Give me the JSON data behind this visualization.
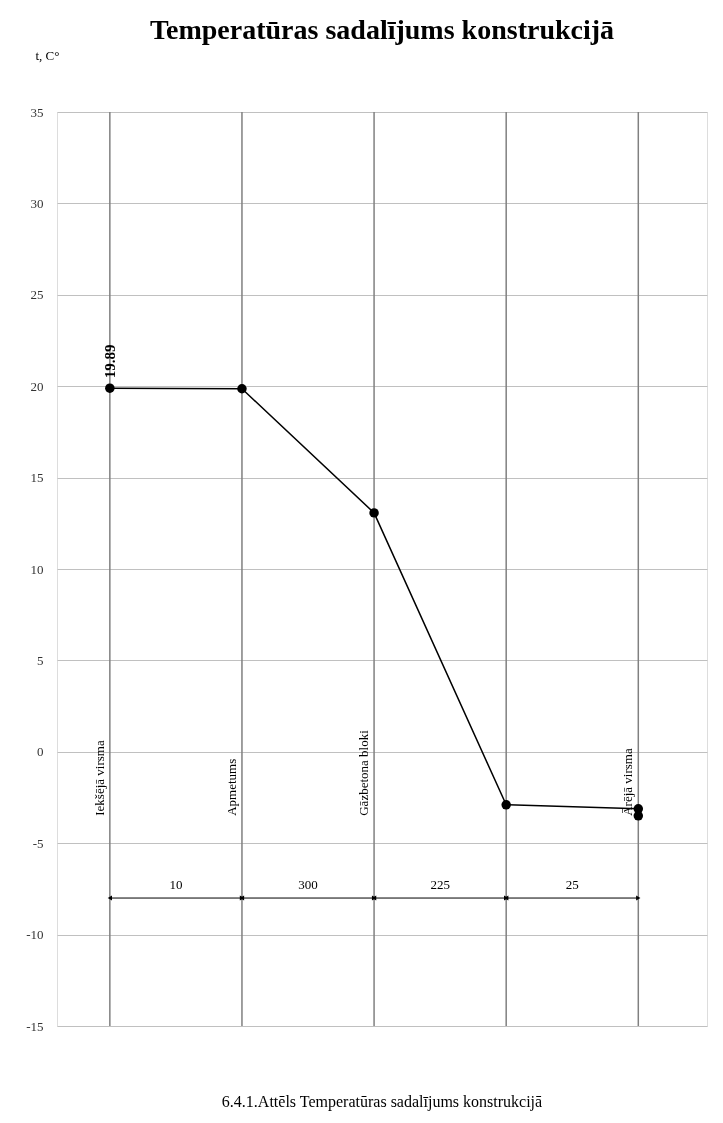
{
  "chart_data": {
    "type": "line",
    "title": "Temperatūras sadalījums konstrukcijā",
    "ylabel": "t, C°",
    "categories": [
      "Iekšējā virsma",
      "Apmetums",
      "Gāzbetona bloki",
      null,
      "Ārējā virsma"
    ],
    "series": [
      {
        "color": "#000000",
        "values": [
          19.89,
          19.86,
          13.07,
          -2.9,
          -3.12
        ],
        "value_labels": [
          "19.89",
          null,
          null,
          null,
          null
        ]
      },
      {
        "type": "scatter",
        "color": "#000000",
        "values": [
          null,
          null,
          null,
          null,
          -3.5
        ]
      }
    ],
    "ylim": [
      -15,
      35
    ],
    "yticks": [
      -15,
      -10,
      -5,
      0,
      5,
      10,
      15,
      20,
      25,
      30,
      35
    ],
    "grid": true,
    "marker": "circle",
    "line_style": "solid",
    "annotations": [
      "10",
      "300",
      "225",
      "25",
      "6.4.1.Attēls Temperatūras sadalījums konstrukcijā"
    ]
  }
}
